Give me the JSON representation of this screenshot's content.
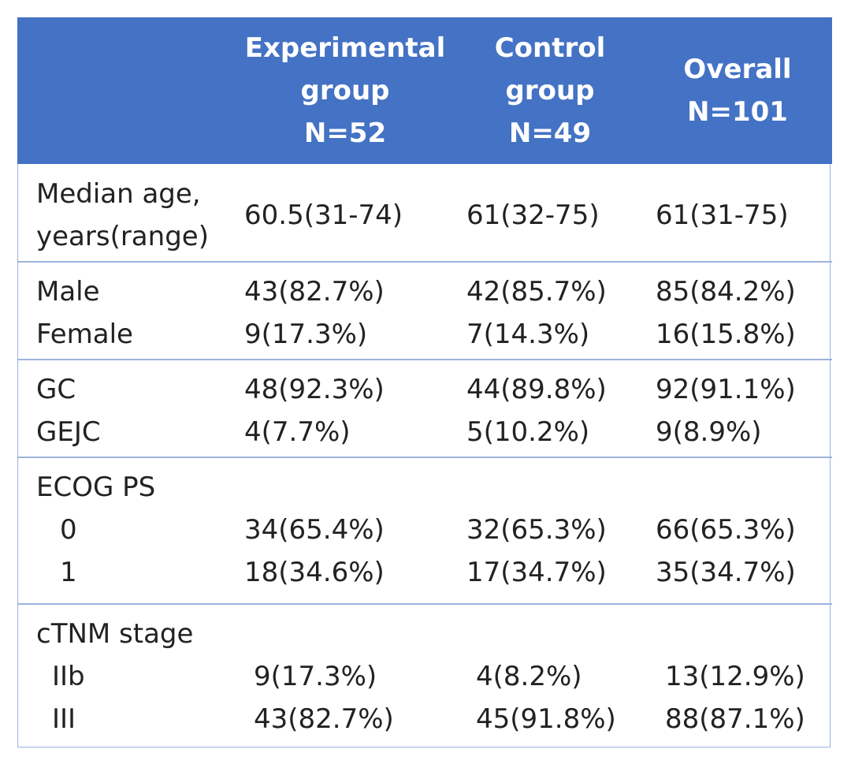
{
  "table": {
    "header": [
      [
        "Experimental",
        "group",
        "N=52"
      ],
      [
        "Control",
        "group",
        "N=49"
      ],
      [
        "Overall",
        "N=101"
      ]
    ],
    "groups": [
      {
        "rows": [
          {
            "label": [
              "Median age,",
              "years(range)"
            ],
            "values": [
              "60.5(31-74)",
              "61(32-75)",
              "61(31-75)"
            ]
          }
        ]
      },
      {
        "rows": [
          {
            "label": "Male",
            "values": [
              "43(82.7%)",
              "42(85.7%)",
              "85(84.2%)"
            ]
          },
          {
            "label": "Female",
            "values": [
              "9(17.3%)",
              "7(14.3%)",
              "16(15.8%)"
            ]
          }
        ]
      },
      {
        "rows": [
          {
            "label": "GC",
            "values": [
              "48(92.3%)",
              "44(89.8%)",
              "92(91.1%)"
            ]
          },
          {
            "label": "GEJC",
            "values": [
              "4(7.7%)",
              "5(10.2%)",
              "9(8.9%)"
            ]
          }
        ]
      },
      {
        "rows": [
          {
            "label": "ECOG PS"
          },
          {
            "label": "0",
            "values": [
              "34(65.4%)",
              "32(65.3%)",
              "66(65.3%)"
            ]
          },
          {
            "label": "1",
            "values": [
              "18(34.6%)",
              "17(34.7%)",
              "35(34.7%)"
            ]
          }
        ]
      },
      {
        "rows": [
          {
            "label": "cTNM stage"
          },
          {
            "label": "IIb",
            "values": [
              "9(17.3%)",
              "4(8.2%)",
              "13(12.9%)"
            ]
          },
          {
            "label": "III",
            "values": [
              "43(82.7%)",
              "45(91.8%)",
              "88(87.1%)"
            ]
          }
        ]
      }
    ]
  }
}
